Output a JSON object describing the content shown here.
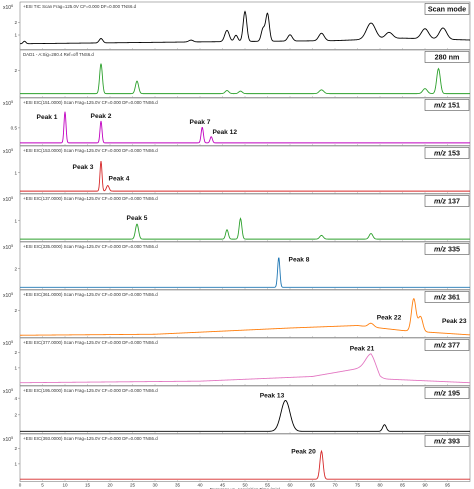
{
  "chart_data": {
    "type": "line",
    "xlabel": "Response vs. Acquisition Time (min)",
    "xlim": [
      0,
      100
    ],
    "x_ticks": [
      0,
      5,
      10,
      15,
      20,
      25,
      30,
      35,
      40,
      45,
      50,
      55,
      60,
      65,
      70,
      75,
      80,
      85,
      90,
      95
    ],
    "panels": [
      {
        "header": "+ESI TIC Scan Frag=125.0V CF=0.000 DF=0.000 TNS6.d",
        "label": "Scan mode",
        "exp": "x10",
        "exp_sup": "6",
        "color": "#000000",
        "ylim": [
          0,
          3
        ],
        "yticks": [
          1,
          2
        ],
        "baseline": 0.35,
        "ramp": [
          [
            0,
            0.3
          ],
          [
            40,
            0.45
          ],
          [
            70,
            0.55
          ],
          [
            85,
            0.75
          ],
          [
            100,
            0.6
          ]
        ],
        "peaks": [
          [
            1,
            0.2,
            0.3
          ],
          [
            18,
            0.35,
            0.4
          ],
          [
            38,
            0.15,
            0.5
          ],
          [
            46,
            0.9,
            0.5
          ],
          [
            48,
            0.5,
            0.4
          ],
          [
            50,
            2.4,
            0.4
          ],
          [
            54,
            1.0,
            0.4
          ],
          [
            55,
            2.2,
            0.4
          ],
          [
            60,
            0.5,
            0.5
          ],
          [
            67,
            0.6,
            0.6
          ],
          [
            78,
            1.3,
            1.0
          ],
          [
            82,
            0.5,
            0.8
          ],
          [
            90,
            0.8,
            0.8
          ],
          [
            94,
            0.9,
            0.8
          ]
        ],
        "annotations": []
      },
      {
        "header": "DAD1 - A:Sig=280.4 Ref=off TNS6.d",
        "label": "280 nm",
        "exp": "",
        "exp_sup": "",
        "color": "#2ca02c",
        "ylim": [
          0,
          3
        ],
        "yticks": [
          2
        ],
        "baseline": 0.15,
        "ramp": [],
        "peaks": [
          [
            18,
            2.4,
            0.3
          ],
          [
            26,
            1.0,
            0.35
          ],
          [
            46,
            0.25,
            0.4
          ],
          [
            49,
            0.2,
            0.4
          ],
          [
            67,
            0.3,
            0.5
          ],
          [
            90,
            0.4,
            0.5
          ],
          [
            93,
            2.0,
            0.4
          ]
        ],
        "annotations": []
      },
      {
        "header": "+ESI EIC(151.0000) Scan Frag=125.0V CF=0.000 DF=0.000 TNS6.d",
        "label": "m/z 151",
        "exp": "x10",
        "exp_sup": "5",
        "color": "#c000c0",
        "ylim": [
          0,
          1.2
        ],
        "yticks": [
          0.5
        ],
        "baseline": 0.02,
        "ramp": [],
        "peaks": [
          [
            10,
            1.0,
            0.22
          ],
          [
            18,
            0.7,
            0.22
          ],
          [
            40.5,
            0.5,
            0.25
          ],
          [
            42.5,
            0.2,
            0.25
          ]
        ],
        "annotations": [
          {
            "text": "Peak 1",
            "x": 6,
            "y": 0.78
          },
          {
            "text": "Peak 2",
            "x": 18,
            "y": 0.82
          },
          {
            "text": "Peak 7",
            "x": 40,
            "y": 0.62
          },
          {
            "text": "Peak 12",
            "x": 45.5,
            "y": 0.3
          }
        ]
      },
      {
        "header": "+ESI EIC(153.0000) Scan Frag=125.0V CF=0.000 DF=0.000 TNS6.d",
        "label": "m/z 153",
        "exp": "x10",
        "exp_sup": "5",
        "color": "#d62728",
        "ylim": [
          0,
          2
        ],
        "yticks": [
          1
        ],
        "baseline": 0.02,
        "ramp": [],
        "peaks": [
          [
            18,
            1.6,
            0.22
          ],
          [
            19.5,
            0.3,
            0.3
          ]
        ],
        "annotations": [
          {
            "text": "Peak 3",
            "x": 14,
            "y": 1.2
          },
          {
            "text": "Peak 4",
            "x": 22,
            "y": 0.6
          }
        ]
      },
      {
        "header": "+ESI EIC(137.0000) Scan Frag=125.0V CF=0.000 DF=0.000 TNS6.d",
        "label": "m/z 137",
        "exp": "x10",
        "exp_sup": "5",
        "color": "#2ca02c",
        "ylim": [
          0,
          2
        ],
        "yticks": [
          1
        ],
        "baseline": 0.02,
        "ramp": [],
        "peaks": [
          [
            26,
            0.8,
            0.35
          ],
          [
            46,
            0.5,
            0.3
          ],
          [
            49,
            1.1,
            0.3
          ],
          [
            67,
            0.2,
            0.4
          ],
          [
            78,
            0.3,
            0.4
          ]
        ],
        "annotations": [
          {
            "text": "Peak 5",
            "x": 26,
            "y": 1.05
          }
        ]
      },
      {
        "header": "+ESI EIC(335.0000) Scan Frag=125.0V CF=0.000 DF=0.000 TNS6.d",
        "label": "m/z 335",
        "exp": "x10",
        "exp_sup": "5",
        "color": "#1f77b4",
        "ylim": [
          0,
          4
        ],
        "yticks": [
          2
        ],
        "baseline": 0.02,
        "ramp": [],
        "peaks": [
          [
            57.5,
            3.2,
            0.25
          ]
        ],
        "annotations": [
          {
            "text": "Peak 8",
            "x": 62,
            "y": 2.8
          }
        ]
      },
      {
        "header": "+ESI EIC(361.0000) Scan Frag=125.0V CF=0.000 DF=0.000 TNS6.d",
        "label": "m/z 361",
        "exp": "x10",
        "exp_sup": "5",
        "color": "#ff7f0e",
        "ylim": [
          0,
          3
        ],
        "yticks": [
          2
        ],
        "baseline": 0.02,
        "ramp": [
          [
            0,
            0.02
          ],
          [
            30,
            0.1
          ],
          [
            60,
            0.6
          ],
          [
            75,
            0.8
          ],
          [
            85,
            0.4
          ],
          [
            100,
            0.05
          ]
        ],
        "peaks": [
          [
            78,
            0.3,
            0.6
          ],
          [
            87.5,
            2.6,
            0.5
          ],
          [
            89,
            1.2,
            0.5
          ]
        ],
        "annotations": [
          {
            "text": "Peak 22",
            "x": 82,
            "y": 1.3
          },
          {
            "text": "Peak 23",
            "x": 96.5,
            "y": 1.0
          }
        ]
      },
      {
        "header": "+ESI EIC(377.0000) Scan Frag=125.0V CF=0.000 DF=0.000 TNS6.d",
        "label": "m/z 377",
        "exp": "x10",
        "exp_sup": "5",
        "color": "#e377c2",
        "ylim": [
          0,
          2.4
        ],
        "yticks": [
          1,
          2
        ],
        "baseline": 0.05,
        "ramp": [
          [
            0,
            0.05
          ],
          [
            40,
            0.15
          ],
          [
            65,
            0.45
          ],
          [
            74,
            0.9
          ],
          [
            78,
            1.1
          ],
          [
            80,
            0.3
          ],
          [
            100,
            0.05
          ]
        ],
        "peaks": [
          [
            78,
            0.8,
            1.2
          ]
        ],
        "annotations": [
          {
            "text": "Peak 21",
            "x": 76,
            "y": 2.1
          }
        ]
      },
      {
        "header": "+ESI EIC(195.0000) Scan Frag=125.0V CF=0.000 DF=0.000 TNS6.d",
        "label": "m/z 195",
        "exp": "x10",
        "exp_sup": "5",
        "color": "#000000",
        "ylim": [
          0,
          4.5
        ],
        "yticks": [
          2,
          4
        ],
        "baseline": 0.02,
        "ramp": [],
        "peaks": [
          [
            59,
            3.7,
            1.0
          ],
          [
            81,
            0.8,
            0.4
          ]
        ],
        "annotations": [
          {
            "text": "Peak 13",
            "x": 56,
            "y": 4.1
          }
        ]
      },
      {
        "header": "+ESI EIC(393.0000) Scan Frag=125.0V CF=0.000 DF=0.000 TNS6.d",
        "label": "m/z 393",
        "exp": "x10",
        "exp_sup": "5",
        "color": "#d62728",
        "ylim": [
          0,
          2.4
        ],
        "yticks": [
          1,
          2
        ],
        "baseline": 0.02,
        "ramp": [],
        "peaks": [
          [
            67,
            1.8,
            0.35
          ]
        ],
        "annotations": [
          {
            "text": "Peak 20",
            "x": 63,
            "y": 1.65
          }
        ]
      }
    ]
  }
}
